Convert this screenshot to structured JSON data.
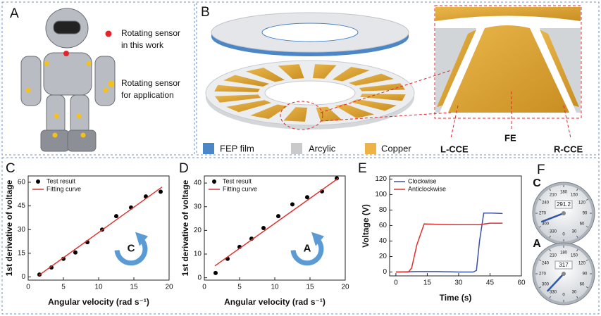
{
  "panel_a": {
    "label": "A",
    "legend": [
      {
        "text": [
          "Rotating sensor",
          "in this work"
        ]
      },
      {
        "text": [
          "Rotating sensor",
          "for application"
        ]
      }
    ]
  },
  "panel_b": {
    "label": "B",
    "legend": [
      "FEP film",
      "Arcylic",
      "Copper"
    ],
    "zoom_labels": [
      "L-CCE",
      "FE",
      "R-CCE"
    ]
  },
  "chart_data": [
    {
      "label": "C",
      "type": "scatter",
      "annotation": "C",
      "xlabel": "Angular velocity (rad s⁻¹)",
      "ylabel": "1st derivative of voltage",
      "xlim": [
        0,
        20
      ],
      "xticks": [
        0,
        5,
        10,
        15,
        20
      ],
      "ylim": [
        -2,
        64
      ],
      "yticks": [
        0,
        15,
        30,
        45,
        60
      ],
      "series": [
        {
          "name": "Test result",
          "color": "#000000",
          "mode": "markers",
          "x": [
            1.6,
            3.3,
            5,
            6.7,
            8.4,
            10.5,
            12.5,
            14.6,
            16.7,
            18.8
          ],
          "values": [
            1.5,
            6,
            11.5,
            15.5,
            22,
            30,
            38.5,
            44,
            51,
            54
          ]
        },
        {
          "name": "Fitting curve",
          "color": "#e03030",
          "mode": "line",
          "x": [
            1.5,
            19
          ],
          "values": [
            1,
            57
          ]
        }
      ]
    },
    {
      "label": "D",
      "type": "scatter",
      "annotation": "A",
      "xlabel": "Angular velocity (rad s⁻¹)",
      "ylabel": "1st derivative of voltage",
      "xlim": [
        0,
        20
      ],
      "xticks": [
        0,
        5,
        10,
        15,
        20
      ],
      "ylim": [
        -1,
        43
      ],
      "yticks": [
        0,
        10,
        20,
        30,
        40
      ],
      "series": [
        {
          "name": "Test result",
          "color": "#000000",
          "mode": "markers",
          "x": [
            1.6,
            3.3,
            5,
            6.7,
            8.4,
            10.5,
            12.5,
            14.6,
            16.7,
            18.8
          ],
          "values": [
            2,
            8,
            13,
            16.5,
            21,
            26,
            31,
            34,
            36.5,
            42
          ]
        },
        {
          "name": "Fitting curve",
          "color": "#e03030",
          "mode": "line",
          "x": [
            1.5,
            19
          ],
          "values": [
            5,
            42
          ]
        }
      ]
    },
    {
      "label": "E",
      "type": "line",
      "xlabel": "Time (s)",
      "ylabel": "Voltage (V)",
      "xlim": [
        -3,
        60
      ],
      "xticks": [
        0,
        15,
        30,
        45,
        60
      ],
      "ylim": [
        -5,
        124
      ],
      "yticks": [
        0,
        20,
        40,
        60,
        80,
        100,
        120
      ],
      "series": [
        {
          "name": "Clockwise",
          "color": "#3a4fa8",
          "mode": "line",
          "x": [
            0,
            10,
            20,
            30,
            37,
            38.5,
            40,
            42,
            46,
            51
          ],
          "values": [
            0,
            0.5,
            0.5,
            0,
            0,
            2,
            40,
            76,
            76,
            75.5
          ]
        },
        {
          "name": "Anticlockwise",
          "color": "#e03030",
          "mode": "line",
          "x": [
            0,
            6,
            7.5,
            10,
            13.5,
            20,
            30,
            40,
            45,
            51
          ],
          "values": [
            0,
            0,
            5,
            35,
            62,
            61.5,
            61,
            61,
            63,
            63
          ]
        }
      ]
    }
  ],
  "panel_f": {
    "label": "F",
    "dial_ticks": [
      0,
      30,
      60,
      90,
      120,
      150,
      180,
      210,
      240,
      270,
      300,
      330
    ],
    "gauges": [
      {
        "label": "C",
        "reading": 291.2
      },
      {
        "label": "A",
        "reading": 317
      }
    ]
  }
}
